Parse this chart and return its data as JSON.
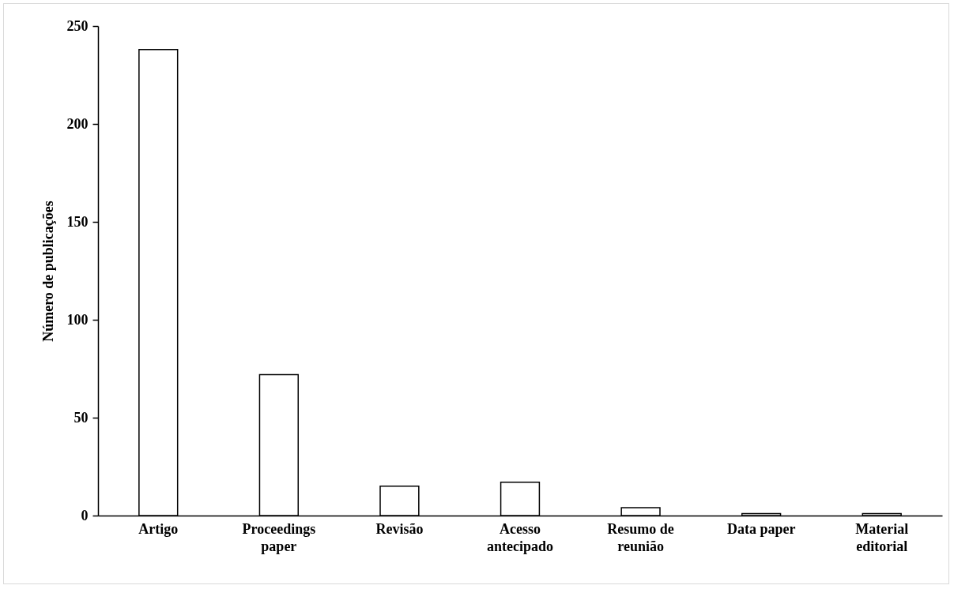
{
  "chart_data": {
    "type": "bar",
    "ylabel": "Número de publicações",
    "categories": [
      "Artigo",
      "Proceedings paper",
      "Revisão",
      "Acesso antecipado",
      "Resumo de reunião",
      "Data paper",
      "Material editorial"
    ],
    "values": [
      238,
      72,
      15,
      17,
      4,
      1,
      1
    ],
    "color": "#ffffff",
    "ylim": [
      0,
      250
    ],
    "yticks": [
      0,
      50,
      100,
      150,
      200,
      250
    ],
    "grid": false
  }
}
